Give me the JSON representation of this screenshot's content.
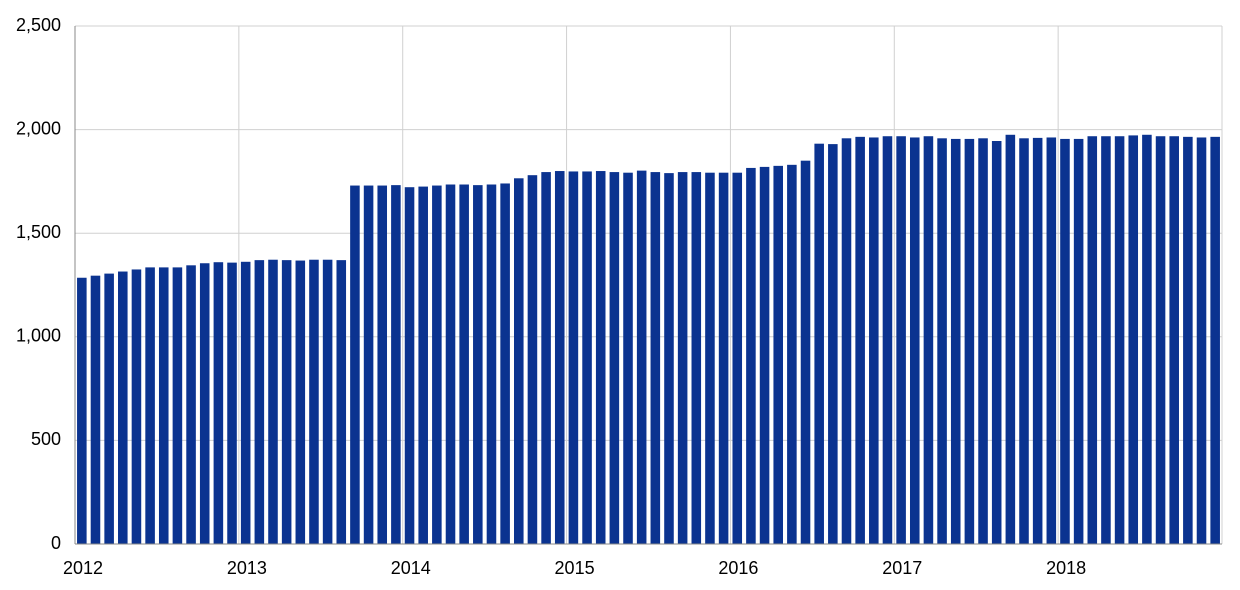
{
  "chart_data": {
    "type": "bar",
    "color": "#0b3390",
    "categories": [
      "2012",
      null,
      null,
      null,
      null,
      null,
      null,
      null,
      null,
      null,
      null,
      null,
      "2013",
      null,
      null,
      null,
      null,
      null,
      null,
      null,
      null,
      null,
      null,
      null,
      "2014",
      null,
      null,
      null,
      null,
      null,
      null,
      null,
      null,
      null,
      null,
      null,
      "2015",
      null,
      null,
      null,
      null,
      null,
      null,
      null,
      null,
      null,
      null,
      null,
      "2016",
      null,
      null,
      null,
      null,
      null,
      null,
      null,
      null,
      null,
      null,
      null,
      "2017",
      null,
      null,
      null,
      null,
      null,
      null,
      null,
      null,
      null,
      null,
      null,
      "2018",
      null,
      null,
      null,
      null,
      null,
      null,
      null,
      null,
      null,
      null,
      null
    ],
    "values": [
      1285,
      1295,
      1305,
      1315,
      1325,
      1335,
      1335,
      1335,
      1345,
      1355,
      1360,
      1358,
      1362,
      1370,
      1372,
      1370,
      1368,
      1372,
      1372,
      1370,
      1730,
      1730,
      1730,
      1732,
      1722,
      1725,
      1730,
      1735,
      1735,
      1732,
      1735,
      1740,
      1765,
      1780,
      1795,
      1800,
      1798,
      1798,
      1800,
      1795,
      1792,
      1802,
      1795,
      1790,
      1795,
      1795,
      1792,
      1792,
      1792,
      1815,
      1820,
      1825,
      1830,
      1850,
      1932,
      1930,
      1958,
      1965,
      1962,
      1968,
      1968,
      1962,
      1968,
      1958,
      1955,
      1955,
      1958,
      1945,
      1975,
      1958,
      1960,
      1962,
      1955,
      1955,
      1968,
      1968,
      1968,
      1972,
      1975,
      1968,
      1968,
      1965,
      1962,
      1965
    ],
    "ylim": [
      0,
      2500
    ],
    "yticks": [
      0,
      500,
      {
        "value": 1000,
        "label": "1,000"
      },
      {
        "value": 1500,
        "label": "1,500"
      },
      {
        "value": 2000,
        "label": "2,000"
      },
      {
        "value": 2500,
        "label": "2,500"
      }
    ],
    "grid": true
  }
}
